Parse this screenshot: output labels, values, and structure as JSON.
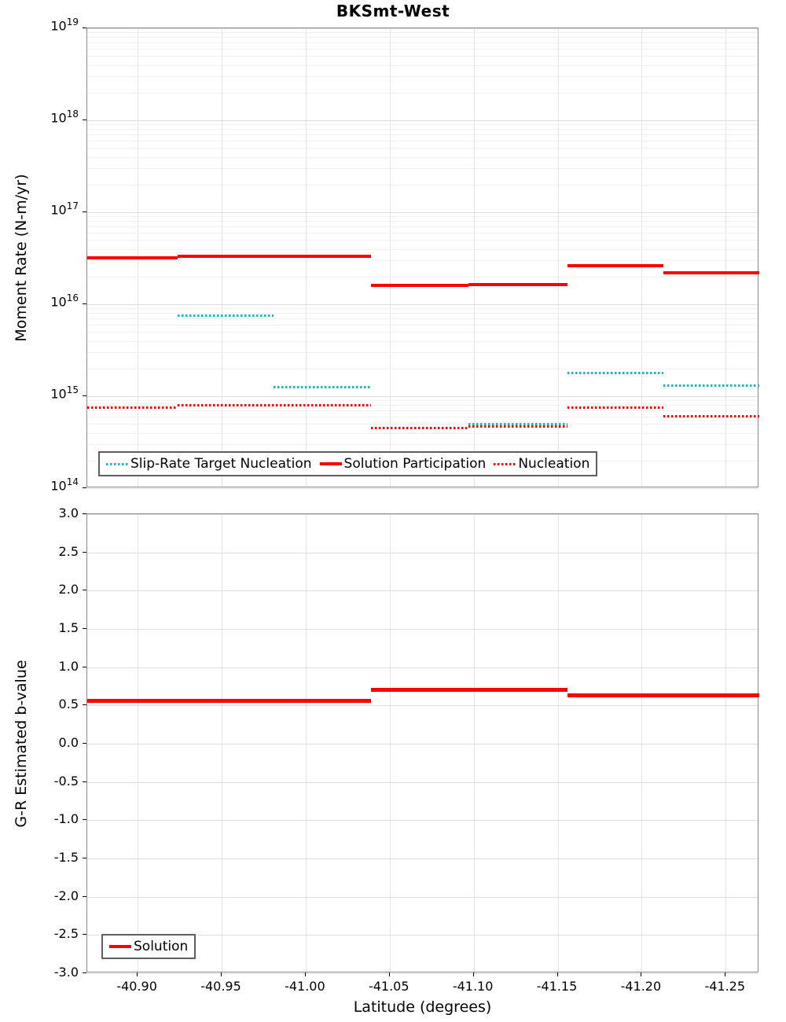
{
  "title": "BKSmt-West",
  "colors": {
    "solution_red": "#ff0000",
    "slip_rate_teal": "#1ab5bd",
    "nucleation_red": "#ff0000",
    "grid_major": "#dedede",
    "grid_minor": "#efefef",
    "grid_vertical": "#e4e4e4",
    "axis_spine": "#8a8a8a"
  },
  "chart_data": [
    {
      "type": "line",
      "title": "BKSmt-West",
      "xlabel": "",
      "ylabel": "Moment Rate (N-m/yr)",
      "yscale": "log",
      "ylim": [
        100000000000000.0,
        1e+19
      ],
      "xlim": [
        -40.87,
        -41.27
      ],
      "grid": true,
      "xticks": [
        -40.9,
        -40.95,
        -41.0,
        -41.05,
        -41.1,
        -41.15,
        -41.2,
        -41.25
      ],
      "xtick_labels": [
        "-40.90",
        "-40.95",
        "-41.00",
        "-41.05",
        "-41.10",
        "-41.15",
        "-41.20",
        "-41.25"
      ],
      "ytick_labels": [
        {
          "base": "10",
          "exp": "19",
          "value": 1e+19
        },
        {
          "base": "10",
          "exp": "18",
          "value": 1e+18
        },
        {
          "base": "10",
          "exp": "17",
          "value": 1e+17
        },
        {
          "base": "10",
          "exp": "16",
          "value": 1e+16
        },
        {
          "base": "10",
          "exp": "15",
          "value": 1000000000000000.0
        },
        {
          "base": "10",
          "exp": "14",
          "value": 100000000000000.0
        }
      ],
      "legend_position": "lower left",
      "legend": [
        {
          "label": "Slip-Rate Target Nucleation",
          "color": "#1ab5bd",
          "style": "dotted"
        },
        {
          "label": "Solution Participation",
          "color": "#ff0000",
          "style": "solid"
        },
        {
          "label": "Nucleation",
          "color": "#ff0000",
          "style": "dotted"
        }
      ],
      "series": [
        {
          "name": "Solution Participation",
          "color": "#ff0000",
          "style": "solid",
          "thickness": 4,
          "segments": [
            {
              "x0": -40.87,
              "x1": -40.924,
              "y": 3.2e+16
            },
            {
              "x0": -40.924,
              "x1": -40.981,
              "y": 3.3e+16
            },
            {
              "x0": -40.981,
              "x1": -41.039,
              "y": 3.3e+16
            },
            {
              "x0": -41.039,
              "x1": -41.097,
              "y": 1.6e+16
            },
            {
              "x0": -41.097,
              "x1": -41.156,
              "y": 1.65e+16
            },
            {
              "x0": -41.156,
              "x1": -41.213,
              "y": 2.6e+16
            },
            {
              "x0": -41.213,
              "x1": -41.27,
              "y": 2.2e+16
            }
          ]
        },
        {
          "name": "Slip-Rate Target Nucleation",
          "color": "#1ab5bd",
          "style": "dotted",
          "thickness": 3,
          "segments": [
            {
              "x0": -40.924,
              "x1": -40.981,
              "y": 7500000000000000.0
            },
            {
              "x0": -40.981,
              "x1": -41.039,
              "y": 1250000000000000.0
            },
            {
              "x0": -41.097,
              "x1": -41.156,
              "y": 500000000000000.0
            },
            {
              "x0": -41.156,
              "x1": -41.213,
              "y": 1800000000000000.0
            },
            {
              "x0": -41.213,
              "x1": -41.27,
              "y": 1300000000000000.0
            }
          ]
        },
        {
          "name": "Nucleation",
          "color": "#ff0000",
          "style": "dotted",
          "thickness": 3,
          "segments": [
            {
              "x0": -40.87,
              "x1": -40.924,
              "y": 750000000000000.0
            },
            {
              "x0": -40.924,
              "x1": -41.039,
              "y": 800000000000000.0
            },
            {
              "x0": -41.039,
              "x1": -41.097,
              "y": 450000000000000.0
            },
            {
              "x0": -41.097,
              "x1": -41.156,
              "y": 470000000000000.0
            },
            {
              "x0": -41.156,
              "x1": -41.213,
              "y": 750000000000000.0
            },
            {
              "x0": -41.213,
              "x1": -41.27,
              "y": 600000000000000.0
            }
          ]
        }
      ]
    },
    {
      "type": "line",
      "title": "",
      "xlabel": "Latitude (degrees)",
      "ylabel": "G-R Estimated b-value",
      "yscale": "linear",
      "ylim": [
        -3.0,
        3.0
      ],
      "xlim": [
        -40.87,
        -41.27
      ],
      "grid": true,
      "xticks": [
        -40.9,
        -40.95,
        -41.0,
        -41.05,
        -41.1,
        -41.15,
        -41.2,
        -41.25
      ],
      "xtick_labels": [
        "-40.90",
        "-40.95",
        "-41.00",
        "-41.05",
        "-41.10",
        "-41.15",
        "-41.20",
        "-41.25"
      ],
      "ytick_labels": [
        {
          "label": "3.0",
          "value": 3.0
        },
        {
          "label": "2.5",
          "value": 2.5
        },
        {
          "label": "2.0",
          "value": 2.0
        },
        {
          "label": "1.5",
          "value": 1.5
        },
        {
          "label": "1.0",
          "value": 1.0
        },
        {
          "label": "0.5",
          "value": 0.5
        },
        {
          "label": "0.0",
          "value": 0.0
        },
        {
          "label": "-0.5",
          "value": -0.5
        },
        {
          "label": "-1.0",
          "value": -1.0
        },
        {
          "label": "-1.5",
          "value": -1.5
        },
        {
          "label": "-2.0",
          "value": -2.0
        },
        {
          "label": "-2.5",
          "value": -2.5
        },
        {
          "label": "-3.0",
          "value": -3.0
        }
      ],
      "legend_position": "lower left",
      "legend": [
        {
          "label": "Solution",
          "color": "#ff0000",
          "style": "solid"
        }
      ],
      "series": [
        {
          "name": "Solution",
          "color": "#ff0000",
          "style": "solid",
          "thickness": 5,
          "segments": [
            {
              "x0": -40.87,
              "x1": -41.039,
              "y": 0.56
            },
            {
              "x0": -41.039,
              "x1": -41.156,
              "y": 0.7
            },
            {
              "x0": -41.156,
              "x1": -41.27,
              "y": 0.63
            }
          ]
        }
      ]
    }
  ]
}
